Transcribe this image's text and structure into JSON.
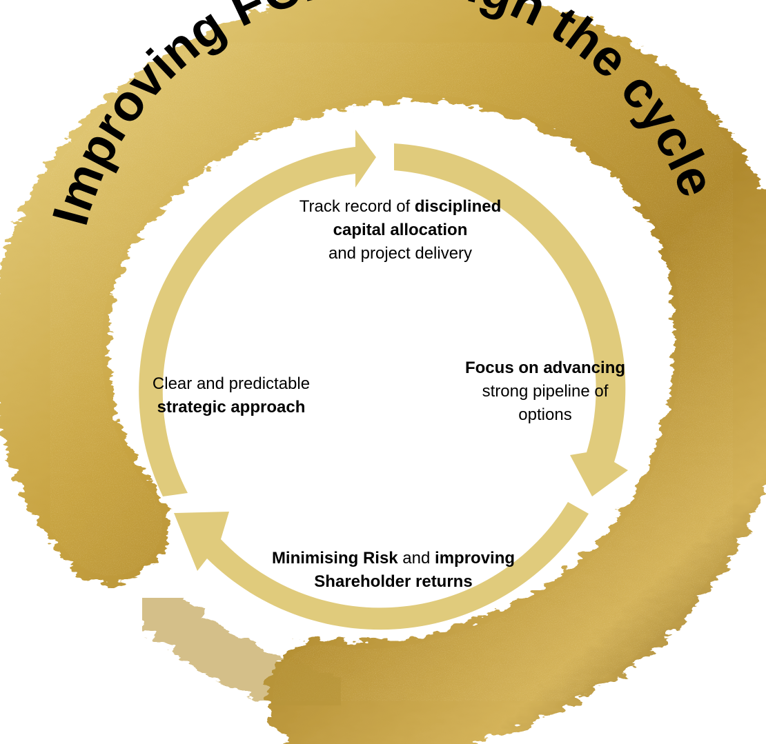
{
  "diagram": {
    "title": "Improving FCF through the cycle",
    "nodes": [
      {
        "id": "top",
        "parts": [
          {
            "t": "Track record of ",
            "b": false
          },
          {
            "t": "disciplined",
            "b": true
          },
          {
            "br": true
          },
          {
            "t": "capital allocation",
            "b": true
          },
          {
            "br": true
          },
          {
            "t": "and project delivery",
            "b": false
          }
        ]
      },
      {
        "id": "right",
        "parts": [
          {
            "t": "Focus on advancing",
            "b": true
          },
          {
            "br": true
          },
          {
            "t": "strong pipeline of",
            "b": false
          },
          {
            "br": true
          },
          {
            "t": "options",
            "b": false
          }
        ]
      },
      {
        "id": "bottom",
        "parts": [
          {
            "t": "Minimising Risk",
            "b": true
          },
          {
            "t": " and ",
            "b": false
          },
          {
            "t": "improving",
            "b": true
          },
          {
            "br": true
          },
          {
            "t": "Shareholder returns",
            "b": true
          }
        ]
      },
      {
        "id": "left",
        "parts": [
          {
            "t": "Clear and predictable",
            "b": false
          },
          {
            "br": true
          },
          {
            "t": "strategic approach",
            "b": true
          }
        ]
      }
    ]
  },
  "colors": {
    "gold_dark": "#a8832a",
    "gold_mid": "#c9a544",
    "gold_light": "#e6cf7f",
    "arrow": "#e0cb7c",
    "text": "#000000"
  }
}
